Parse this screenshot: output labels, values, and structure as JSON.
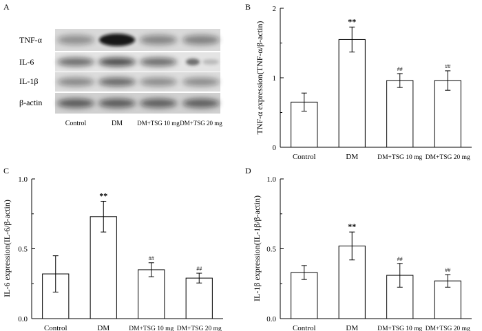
{
  "chart_data": [
    {
      "panel": "A",
      "type": "other",
      "title": "Western blot",
      "row_labels": [
        "TNF-α",
        "IL-6",
        "IL-1β",
        "β-actin"
      ],
      "lane_labels": [
        "Control",
        "DM",
        "DM+TSG 10 mg",
        "DM+TSG 20 mg"
      ]
    },
    {
      "panel": "B",
      "type": "bar",
      "categories": [
        "Control",
        "DM",
        "DM+TSG 10 mg",
        "DM+TSG 20 mg"
      ],
      "values": [
        0.65,
        1.55,
        0.96,
        0.96
      ],
      "errors": [
        0.13,
        0.18,
        0.1,
        0.14
      ],
      "annotations": [
        "",
        "**",
        "##",
        "##"
      ],
      "ylabel": "TNF-α expression(TNF-α/β-actin)",
      "ylim": [
        0,
        2
      ],
      "yticks": [
        "0",
        "1",
        "2"
      ]
    },
    {
      "panel": "C",
      "type": "bar",
      "categories": [
        "Control",
        "DM",
        "DM+TSG 10 mg",
        "DM+TSG 20 mg"
      ],
      "values": [
        0.32,
        0.73,
        0.35,
        0.29
      ],
      "errors": [
        0.13,
        0.11,
        0.05,
        0.035
      ],
      "annotations": [
        "",
        "**",
        "##",
        "##"
      ],
      "ylabel": "IL-6 expression(IL-6/β-actin)",
      "ylim": [
        0,
        1
      ],
      "yticks": [
        "0.0",
        "0.5",
        "1.0"
      ]
    },
    {
      "panel": "D",
      "type": "bar",
      "categories": [
        "Control",
        "DM",
        "DM+TSG 10 mg",
        "DM+TSG 20 mg"
      ],
      "values": [
        0.33,
        0.52,
        0.31,
        0.27
      ],
      "errors": [
        0.05,
        0.1,
        0.085,
        0.045
      ],
      "annotations": [
        "",
        "**",
        "##",
        "##"
      ],
      "ylabel": "IL-1β expression(IL-1β/β-actin)",
      "ylim": [
        0,
        1
      ],
      "yticks": [
        "0.0",
        "0.5",
        "1.0"
      ]
    }
  ]
}
